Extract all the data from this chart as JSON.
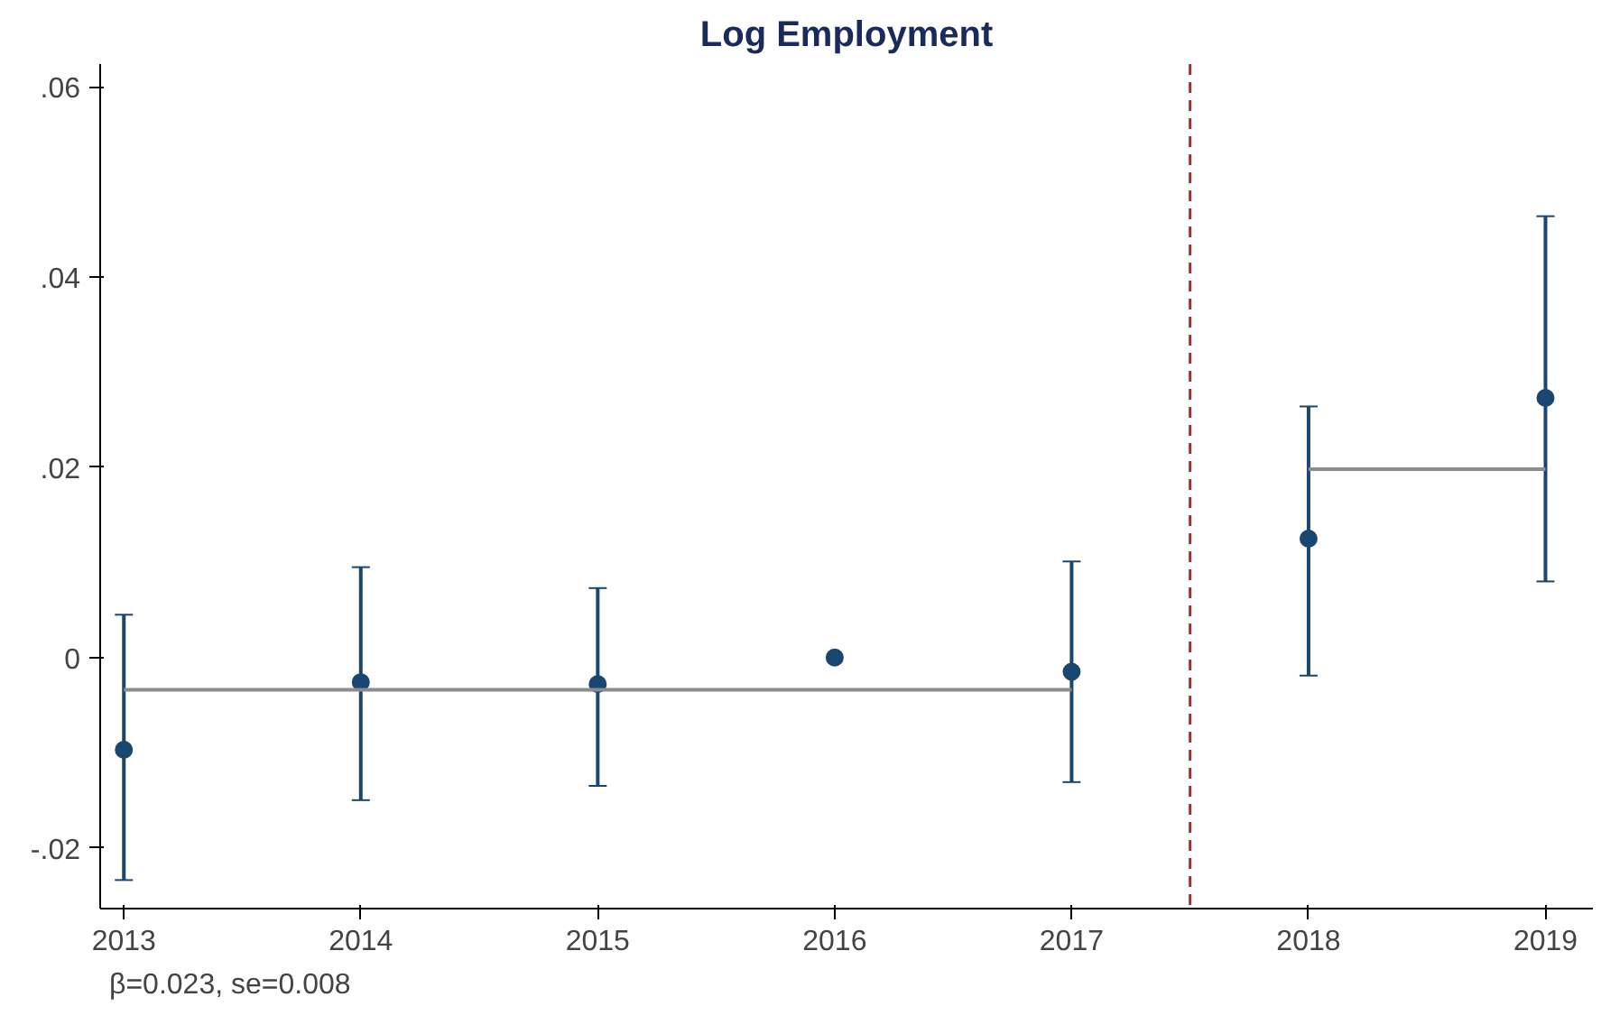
{
  "chart_data": {
    "type": "scatter",
    "title": "Log Employment",
    "x": [
      2013,
      2014,
      2015,
      2016,
      2017,
      2018,
      2019
    ],
    "series": [
      {
        "color": "#1a476f",
        "marker": "circle",
        "values": [
          -0.0097,
          -0.0026,
          -0.0028,
          0,
          -0.0015,
          0.0125,
          0.0273
        ],
        "errors": [
          [
            -0.0234,
            0.0045
          ],
          [
            -0.015,
            0.0095
          ],
          [
            -0.0135,
            0.0073
          ],
          null,
          [
            -0.0131,
            0.0101
          ],
          [
            -0.0019,
            0.0264
          ],
          [
            0.008,
            0.0464
          ]
        ]
      },
      {
        "type": "line",
        "marker": "none",
        "color": "#8c8c8c",
        "x": [
          2013,
          2017
        ],
        "values": [
          -0.0034,
          -0.0034
        ]
      },
      {
        "type": "line",
        "marker": "none",
        "color": "#8c8c8c",
        "x": [
          2018,
          2019
        ],
        "values": [
          0.0198,
          0.0198
        ]
      }
    ],
    "grid": false,
    "xlim": [
      2012.9,
      2019.2
    ],
    "xticks": [
      2013,
      2014,
      2015,
      2016,
      2017,
      2018,
      2019
    ],
    "ylim": [
      -0.0264,
      0.0624
    ],
    "yticks": [
      {
        "value": -0.02,
        "label": "-.02"
      },
      {
        "value": 0,
        "label": "0"
      },
      {
        "value": 0.02,
        "label": ".02"
      },
      {
        "value": 0.04,
        "label": ".04"
      },
      {
        "value": 0.06,
        "label": ".06"
      }
    ],
    "ref_lines": [
      {
        "axis": "x",
        "value": 2017.5,
        "color": "#a03030",
        "line_style": "dashed"
      }
    ],
    "annotations": [
      "β=0.023, se=0.008"
    ]
  }
}
